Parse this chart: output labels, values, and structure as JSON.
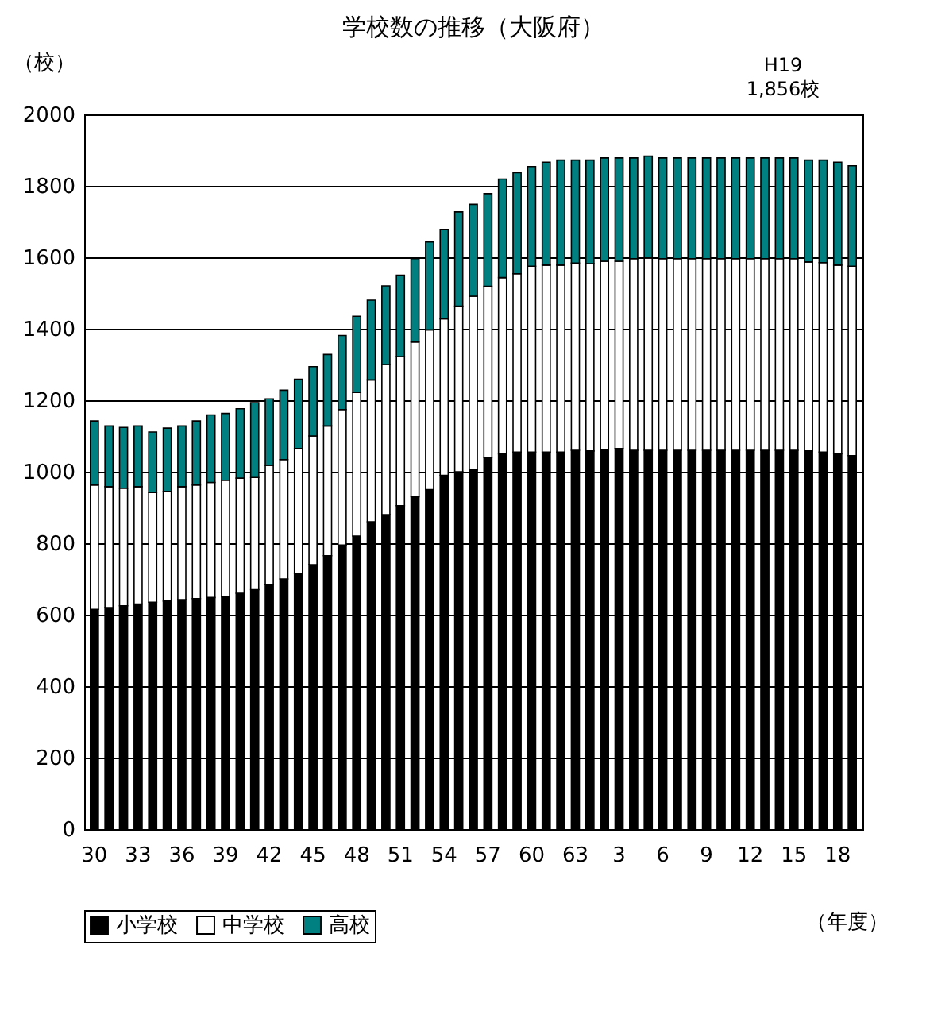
{
  "chart_data": {
    "type": "bar",
    "stacked": true,
    "title": "学校数の推移（大阪府）",
    "ylabel": "（校）",
    "xlabel": "（年度）",
    "categories": [
      "30",
      null,
      null,
      "33",
      null,
      null,
      "36",
      null,
      null,
      "39",
      null,
      null,
      "42",
      null,
      null,
      "45",
      null,
      null,
      "48",
      null,
      null,
      "51",
      null,
      null,
      "54",
      null,
      null,
      "57",
      null,
      null,
      "60",
      null,
      null,
      "63",
      null,
      null,
      "3",
      null,
      null,
      "6",
      null,
      null,
      "9",
      null,
      null,
      "12",
      null,
      null,
      "15",
      null,
      null,
      "18",
      null
    ],
    "series": [
      {
        "name": "小学校",
        "color": "#000000",
        "values": [
          615,
          620,
          625,
          630,
          635,
          638,
          642,
          645,
          648,
          650,
          660,
          670,
          685,
          700,
          715,
          740,
          765,
          795,
          820,
          860,
          880,
          905,
          930,
          950,
          990,
          1000,
          1005,
          1040,
          1050,
          1055,
          1055,
          1055,
          1055,
          1060,
          1058,
          1062,
          1065,
          1060,
          1060,
          1060,
          1060,
          1060,
          1060,
          1060,
          1060,
          1060,
          1060,
          1060,
          1060,
          1058,
          1055,
          1050,
          1045
        ]
      },
      {
        "name": "中学校",
        "color": "#ffffff",
        "values": [
          348,
          338,
          329,
          328,
          307,
          307,
          316,
          318,
          322,
          326,
          322,
          314,
          333,
          334,
          350,
          360,
          363,
          379,
          402,
          397,
          420,
          417,
          433,
          447,
          438,
          463,
          486,
          479,
          493,
          499,
          520,
          523,
          523,
          524,
          524,
          527,
          524,
          536,
          538,
          536,
          536,
          536,
          536,
          536,
          536,
          536,
          536,
          536,
          536,
          529,
          530,
          528,
          530
        ]
      },
      {
        "name": "高校",
        "color": "#008080",
        "values": [
          179,
          170,
          170,
          170,
          169,
          177,
          170,
          179,
          189,
          187,
          194,
          209,
          186,
          194,
          194,
          194,
          200,
          207,
          213,
          223,
          220,
          228,
          233,
          246,
          250,
          264,
          257,
          259,
          276,
          283,
          279,
          288,
          294,
          288,
          290,
          289,
          289,
          282,
          285,
          282,
          282,
          282,
          282,
          282,
          282,
          282,
          282,
          282,
          282,
          285,
          287,
          288,
          281
        ]
      }
    ],
    "ylim": [
      0,
      2000
    ],
    "yticks": [
      0,
      200,
      400,
      600,
      800,
      1000,
      1200,
      1400,
      1600,
      1800,
      2000
    ],
    "grid": "y",
    "legend": "bottom",
    "annotations": [
      "H19\n1,856校"
    ]
  }
}
